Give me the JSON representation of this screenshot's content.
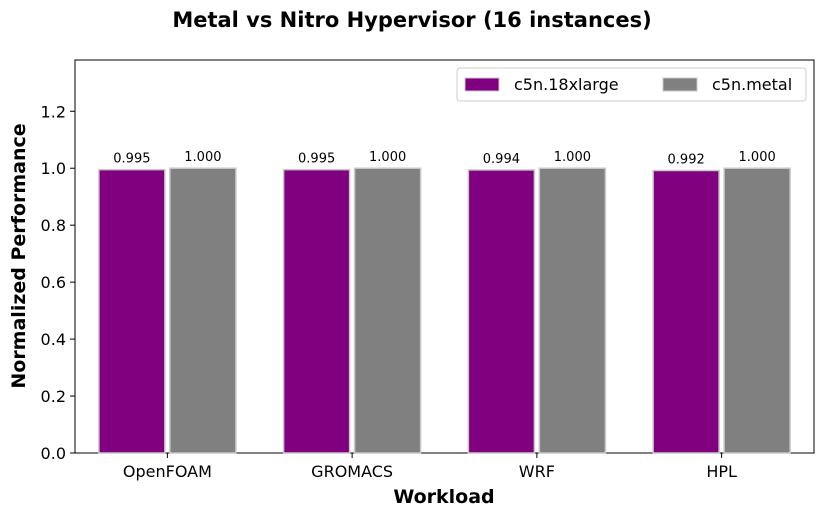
{
  "chart_data": {
    "type": "bar",
    "title": "Metal vs Nitro Hypervisor (16 instances)",
    "xlabel": "Workload",
    "ylabel": "Normalized Performance",
    "categories": [
      "OpenFOAM",
      "GROMACS",
      "WRF",
      "HPL"
    ],
    "series": [
      {
        "name": "c5n.18xlarge",
        "color": "#800080",
        "values": [
          0.995,
          0.995,
          0.994,
          0.992
        ],
        "labels": [
          "0.995",
          "0.995",
          "0.994",
          "0.992"
        ]
      },
      {
        "name": "c5n.metal",
        "color": "#808080",
        "values": [
          1.0,
          1.0,
          1.0,
          1.0
        ],
        "labels": [
          "1.000",
          "1.000",
          "1.000",
          "1.000"
        ]
      }
    ],
    "ylim": [
      0,
      1.38
    ],
    "yticks": [
      0.0,
      0.2,
      0.4,
      0.6,
      0.8,
      1.0,
      1.2
    ],
    "ytick_labels": [
      "0.0",
      "0.2",
      "0.4",
      "0.6",
      "0.8",
      "1.0",
      "1.2"
    ],
    "grid": false,
    "legend_position": "top-right"
  }
}
